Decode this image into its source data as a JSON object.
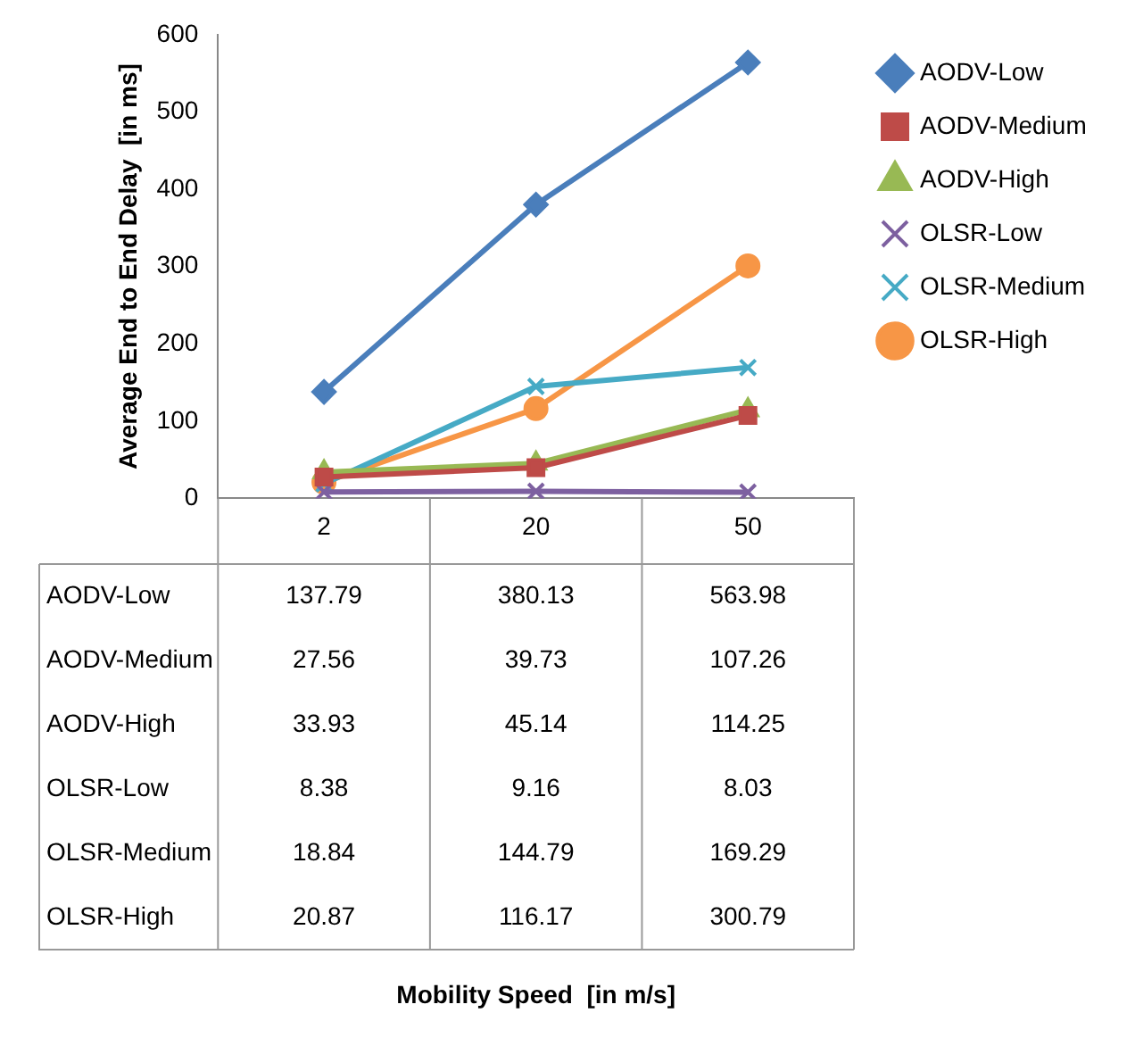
{
  "chart_data": {
    "type": "line",
    "annotations": [
      "Mobility Speed  [in m/s]"
    ],
    "ylabel": "Average End to End Delay  [in ms]",
    "categories": [
      "2",
      "20",
      "50"
    ],
    "ylim": [
      0,
      600
    ],
    "yticks": [
      0,
      100,
      200,
      300,
      400,
      500,
      600
    ],
    "legend": "right",
    "data_labels": true,
    "series": [
      {
        "name": "AODV-Low",
        "color": "#4a7ebb",
        "marker": "diamond",
        "values": [
          137.79,
          380.13,
          563.98
        ]
      },
      {
        "name": "AODV-Medium",
        "color": "#be4b48",
        "marker": "square",
        "values": [
          27.56,
          39.73,
          107.26
        ]
      },
      {
        "name": "AODV-High",
        "color": "#98b954",
        "marker": "triangle",
        "values": [
          33.93,
          45.14,
          114.25
        ]
      },
      {
        "name": "OLSR-Low",
        "color": "#7d60a0",
        "marker": "cross",
        "values": [
          8.38,
          9.16,
          8.03
        ]
      },
      {
        "name": "OLSR-Medium",
        "color": "#46aac5",
        "marker": "cross",
        "values": [
          18.84,
          144.79,
          169.29
        ]
      },
      {
        "name": "OLSR-High",
        "color": "#f79646",
        "marker": "circle",
        "values": [
          20.87,
          116.17,
          300.79
        ]
      }
    ]
  }
}
